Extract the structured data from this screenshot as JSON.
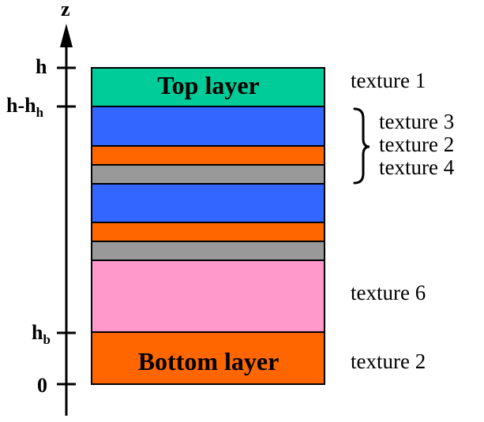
{
  "axis": {
    "label": "z",
    "ticks": [
      {
        "main": "h",
        "sub": ""
      },
      {
        "main": "h-h",
        "sub": "h"
      },
      {
        "main": "h",
        "sub": "b"
      },
      {
        "main": "0",
        "sub": ""
      }
    ]
  },
  "colors": {
    "top": "#00cc99",
    "blue": "#3366ff",
    "orange": "#ff6600",
    "gray": "#999999",
    "pink": "#ff99cc",
    "bottom": "#ff6600",
    "outline": "#000000"
  },
  "layers": [
    {
      "name": "top-layer",
      "color": "top",
      "label": "Top layer"
    },
    {
      "name": "blue-layer-1",
      "color": "blue",
      "label": ""
    },
    {
      "name": "orange-layer-1",
      "color": "orange",
      "label": ""
    },
    {
      "name": "gray-layer-1",
      "color": "gray",
      "label": ""
    },
    {
      "name": "blue-layer-2",
      "color": "blue",
      "label": ""
    },
    {
      "name": "orange-layer-2",
      "color": "orange",
      "label": ""
    },
    {
      "name": "gray-layer-2",
      "color": "gray",
      "label": ""
    },
    {
      "name": "pink-layer",
      "color": "pink",
      "label": ""
    },
    {
      "name": "bottom-layer",
      "color": "bottom",
      "label": "Bottom layer"
    }
  ],
  "textures": {
    "top": "texture 1",
    "group": [
      "texture 3",
      "texture 2",
      "texture 4"
    ],
    "pink": "texture 6",
    "bottom": "texture 2"
  }
}
